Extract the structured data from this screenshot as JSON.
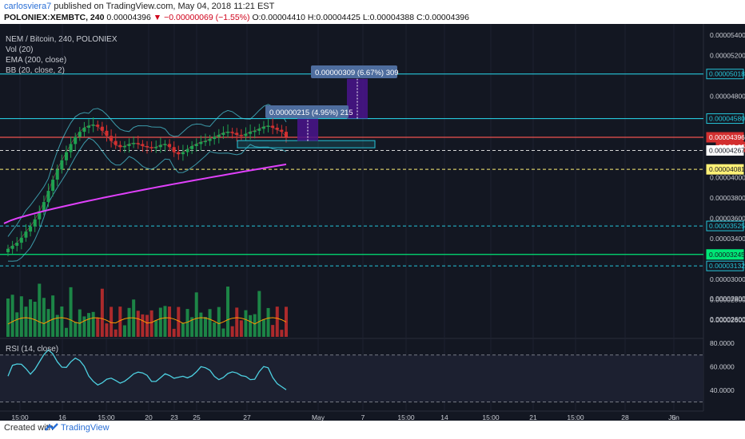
{
  "header": {
    "author": "carlosviera7",
    "published_text": "published on TradingView.com, May 04, 2018 11:21 EST",
    "symbol": "POLONIEX:XEMBTC, 240",
    "last": "0.00004396",
    "change": "▼ −0.00000069 (−1.55%)",
    "ohlc_o": "O:0.00004410",
    "ohlc_h": "H:0.00004425",
    "ohlc_l": "L:0.00004388",
    "ohlc_c": "C:0.00004396"
  },
  "legend": {
    "title": "NEM / Bitcoin, 240, POLONIEX",
    "vol": "Vol (20)",
    "ema": "EMA (200, close)",
    "bb": "BB (20, close, 2)",
    "rsi": "RSI (14, close)"
  },
  "annotations": {
    "box_upper": "0.00000309 (6.67%) 309",
    "box_lower": "0.00000215 (4.95%) 215"
  },
  "footer": {
    "created_with": "Created with",
    "brand": "TradingView"
  },
  "colors": {
    "background": "#131722",
    "up": "#26a69a",
    "up_candle": "#1fa150",
    "down_candle": "#d32f2f",
    "cyan": "#26c6da",
    "ema": "#e040fb",
    "yellow": "#fff176",
    "green": "#00e676",
    "white": "#ffffff",
    "red": "#d0021b"
  },
  "chart_data": {
    "type": "candlestick",
    "price_axis": {
      "min": 2.5e-05,
      "max": 5.5e-05,
      "ticks": [
        "0.00005400",
        "0.00005200",
        "0.00004800",
        "0.00004000",
        "0.00003800",
        "0.00003600",
        "0.00003400",
        "0.00003000",
        "0.00002800",
        "0.00002600"
      ]
    },
    "time_axis": {
      "labels": [
        "15:00",
        "16",
        "15:00",
        "20",
        "23",
        "25",
        "27",
        "May",
        "7",
        "15:00",
        "14",
        "15:00",
        "21",
        "15:00",
        "28",
        "Jun",
        "5"
      ]
    },
    "price_labels": [
      {
        "value": "0.00005018",
        "style": "cyan"
      },
      {
        "value": "0.00004580",
        "style": "cyan"
      },
      {
        "value": "0.00004396",
        "style": "red"
      },
      {
        "value": "03:39:05",
        "style": "red-time"
      },
      {
        "value": "0.00004267",
        "style": "white"
      },
      {
        "value": "0.00004081",
        "style": "yellow"
      },
      {
        "value": "0.00003525",
        "style": "cyan"
      },
      {
        "value": "0.00003245",
        "style": "green"
      },
      {
        "value": "0.00003132",
        "style": "cyan"
      }
    ],
    "horizontal_lines": [
      {
        "price": 5.018e-05,
        "style": "solid",
        "color": "cyan"
      },
      {
        "price": 4.58e-05,
        "style": "solid",
        "color": "cyan"
      },
      {
        "price": 4.396e-05,
        "style": "solid",
        "color": "red"
      },
      {
        "price": 4.267e-05,
        "style": "dashed",
        "color": "white"
      },
      {
        "price": 4.081e-05,
        "style": "dashed",
        "color": "yellow"
      },
      {
        "price": 3.525e-05,
        "style": "dashed",
        "color": "cyan"
      },
      {
        "price": 3.245e-05,
        "style": "solid",
        "color": "green"
      },
      {
        "price": 3.132e-05,
        "style": "dashed",
        "color": "cyan"
      }
    ],
    "close_series": [
      3.3e-05,
      3.33e-05,
      3.36e-05,
      3.41e-05,
      3.47e-05,
      3.52e-05,
      3.59e-05,
      3.67e-05,
      3.76e-05,
      3.87e-05,
      3.98e-05,
      4.08e-05,
      4.17e-05,
      4.25e-05,
      4.33e-05,
      4.4e-05,
      4.45e-05,
      4.49e-05,
      4.51e-05,
      4.52e-05,
      4.5e-05,
      4.46e-05,
      4.41e-05,
      4.36e-05,
      4.32e-05,
      4.3e-05,
      4.31e-05,
      4.33e-05,
      4.34e-05,
      4.33e-05,
      4.31e-05,
      4.3e-05,
      4.29e-05,
      4.3e-05,
      4.32e-05,
      4.33e-05,
      4.3e-05,
      4.25e-05,
      4.23e-05,
      4.25e-05,
      4.28e-05,
      4.31e-05,
      4.33e-05,
      4.35e-05,
      4.36e-05,
      4.38e-05,
      4.4e-05,
      4.42e-05,
      4.44e-05,
      4.45e-05,
      4.44e-05,
      4.42e-05,
      4.41e-05,
      4.43e-05,
      4.45e-05,
      4.46e-05,
      4.48e-05,
      4.5e-05,
      4.51e-05,
      4.49e-05,
      4.47e-05,
      4.45e-05,
      4.4e-05
    ],
    "rsi_axis": {
      "ticks": [
        "80.0000",
        "60.0000",
        "40.0000"
      ],
      "bounds": [
        70,
        30
      ]
    }
  }
}
